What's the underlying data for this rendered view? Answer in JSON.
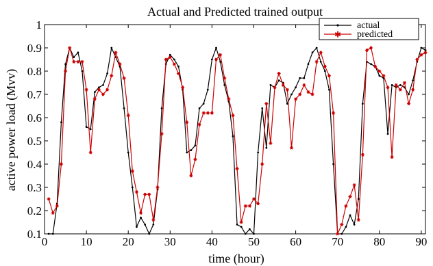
{
  "chart_data": {
    "type": "line",
    "title": "Actual and Predicted trained output",
    "xlabel": "time (hour)",
    "ylabel": "active power load (Mvv)",
    "xlim": [
      0,
      91
    ],
    "ylim": [
      0.1,
      1.0
    ],
    "xticks": [
      0,
      10,
      20,
      30,
      40,
      50,
      60,
      70,
      80,
      90
    ],
    "yticks": [
      0.1,
      0.2,
      0.3,
      0.4,
      0.5,
      0.6,
      0.7,
      0.8,
      0.9,
      1.0
    ],
    "grid": false,
    "legend_position": "top-right",
    "series": [
      {
        "name": "actual",
        "color": "#000000",
        "marker": "dot",
        "values": [
          [
            1,
            0.1
          ],
          [
            2,
            0.1
          ],
          [
            3,
            0.23
          ],
          [
            4,
            0.58
          ],
          [
            5,
            0.83
          ],
          [
            6,
            0.9
          ],
          [
            7,
            0.86
          ],
          [
            8,
            0.88
          ],
          [
            9,
            0.8
          ],
          [
            10,
            0.56
          ],
          [
            11,
            0.55
          ],
          [
            12,
            0.71
          ],
          [
            13,
            0.73
          ],
          [
            14,
            0.74
          ],
          [
            15,
            0.79
          ],
          [
            16,
            0.9
          ],
          [
            17,
            0.86
          ],
          [
            18,
            0.82
          ],
          [
            19,
            0.64
          ],
          [
            20,
            0.45
          ],
          [
            21,
            0.3
          ],
          [
            22,
            0.13
          ],
          [
            23,
            0.17
          ],
          [
            24,
            0.14
          ],
          [
            25,
            0.1
          ],
          [
            26,
            0.14
          ],
          [
            27,
            0.29
          ],
          [
            28,
            0.64
          ],
          [
            29,
            0.83
          ],
          [
            30,
            0.87
          ],
          [
            31,
            0.85
          ],
          [
            32,
            0.82
          ],
          [
            33,
            0.72
          ],
          [
            34,
            0.45
          ],
          [
            35,
            0.46
          ],
          [
            36,
            0.48
          ],
          [
            37,
            0.64
          ],
          [
            38,
            0.66
          ],
          [
            39,
            0.72
          ],
          [
            40,
            0.85
          ],
          [
            41,
            0.9
          ],
          [
            42,
            0.84
          ],
          [
            43,
            0.74
          ],
          [
            44,
            0.67
          ],
          [
            45,
            0.52
          ],
          [
            46,
            0.14
          ],
          [
            47,
            0.13
          ],
          [
            48,
            0.1
          ],
          [
            49,
            0.12
          ],
          [
            50,
            0.1
          ],
          [
            51,
            0.45
          ],
          [
            52,
            0.64
          ],
          [
            53,
            0.47
          ],
          [
            54,
            0.74
          ],
          [
            55,
            0.73
          ],
          [
            56,
            0.76
          ],
          [
            57,
            0.75
          ],
          [
            58,
            0.66
          ],
          [
            59,
            0.7
          ],
          [
            60,
            0.73
          ],
          [
            61,
            0.77
          ],
          [
            62,
            0.77
          ],
          [
            63,
            0.83
          ],
          [
            64,
            0.88
          ],
          [
            65,
            0.9
          ],
          [
            66,
            0.84
          ],
          [
            67,
            0.8
          ],
          [
            68,
            0.72
          ],
          [
            69,
            0.4
          ],
          [
            70,
            0.1
          ],
          [
            71,
            0.1
          ],
          [
            72,
            0.13
          ],
          [
            73,
            0.18
          ],
          [
            74,
            0.14
          ],
          [
            75,
            0.25
          ],
          [
            76,
            0.66
          ],
          [
            77,
            0.84
          ],
          [
            78,
            0.83
          ],
          [
            79,
            0.82
          ],
          [
            80,
            0.78
          ],
          [
            81,
            0.77
          ],
          [
            82,
            0.53
          ],
          [
            83,
            0.74
          ],
          [
            84,
            0.73
          ],
          [
            85,
            0.74
          ],
          [
            86,
            0.73
          ],
          [
            87,
            0.7
          ],
          [
            88,
            0.76
          ],
          [
            89,
            0.84
          ],
          [
            90,
            0.9
          ],
          [
            91,
            0.89
          ]
        ]
      },
      {
        "name": "predicted",
        "color": "#cc0000",
        "marker": "star",
        "values": [
          [
            1,
            0.25
          ],
          [
            2,
            0.19
          ],
          [
            3,
            0.22
          ],
          [
            4,
            0.4
          ],
          [
            5,
            0.8
          ],
          [
            6,
            0.9
          ],
          [
            7,
            0.84
          ],
          [
            8,
            0.84
          ],
          [
            9,
            0.84
          ],
          [
            10,
            0.72
          ],
          [
            11,
            0.45
          ],
          [
            12,
            0.68
          ],
          [
            13,
            0.72
          ],
          [
            14,
            0.7
          ],
          [
            15,
            0.72
          ],
          [
            16,
            0.78
          ],
          [
            17,
            0.88
          ],
          [
            18,
            0.83
          ],
          [
            19,
            0.77
          ],
          [
            20,
            0.61
          ],
          [
            21,
            0.37
          ],
          [
            22,
            0.28
          ],
          [
            23,
            0.19
          ],
          [
            24,
            0.27
          ],
          [
            25,
            0.27
          ],
          [
            26,
            0.16
          ],
          [
            27,
            0.3
          ],
          [
            28,
            0.53
          ],
          [
            29,
            0.85
          ],
          [
            30,
            0.86
          ],
          [
            31,
            0.83
          ],
          [
            32,
            0.79
          ],
          [
            33,
            0.73
          ],
          [
            34,
            0.58
          ],
          [
            35,
            0.35
          ],
          [
            36,
            0.42
          ],
          [
            37,
            0.57
          ],
          [
            38,
            0.62
          ],
          [
            39,
            0.62
          ],
          [
            40,
            0.62
          ],
          [
            41,
            0.85
          ],
          [
            42,
            0.87
          ],
          [
            43,
            0.77
          ],
          [
            44,
            0.68
          ],
          [
            45,
            0.61
          ],
          [
            46,
            0.38
          ],
          [
            47,
            0.15
          ],
          [
            48,
            0.22
          ],
          [
            49,
            0.22
          ],
          [
            50,
            0.25
          ],
          [
            51,
            0.23
          ],
          [
            52,
            0.4
          ],
          [
            53,
            0.66
          ],
          [
            54,
            0.49
          ],
          [
            55,
            0.73
          ],
          [
            56,
            0.79
          ],
          [
            57,
            0.74
          ],
          [
            58,
            0.72
          ],
          [
            59,
            0.47
          ],
          [
            60,
            0.68
          ],
          [
            61,
            0.7
          ],
          [
            62,
            0.74
          ],
          [
            63,
            0.71
          ],
          [
            64,
            0.7
          ],
          [
            65,
            0.84
          ],
          [
            66,
            0.88
          ],
          [
            67,
            0.82
          ],
          [
            68,
            0.78
          ],
          [
            69,
            0.62
          ],
          [
            70,
            0.1
          ],
          [
            71,
            0.14
          ],
          [
            72,
            0.22
          ],
          [
            73,
            0.26
          ],
          [
            74,
            0.31
          ],
          [
            75,
            0.16
          ],
          [
            76,
            0.44
          ],
          [
            77,
            0.89
          ],
          [
            78,
            0.9
          ],
          [
            79,
            0.82
          ],
          [
            80,
            0.8
          ],
          [
            81,
            0.78
          ],
          [
            82,
            0.73
          ],
          [
            83,
            0.43
          ],
          [
            84,
            0.74
          ],
          [
            85,
            0.72
          ],
          [
            86,
            0.75
          ],
          [
            87,
            0.66
          ],
          [
            88,
            0.72
          ],
          [
            89,
            0.85
          ],
          [
            90,
            0.87
          ],
          [
            91,
            0.88
          ]
        ]
      }
    ]
  }
}
